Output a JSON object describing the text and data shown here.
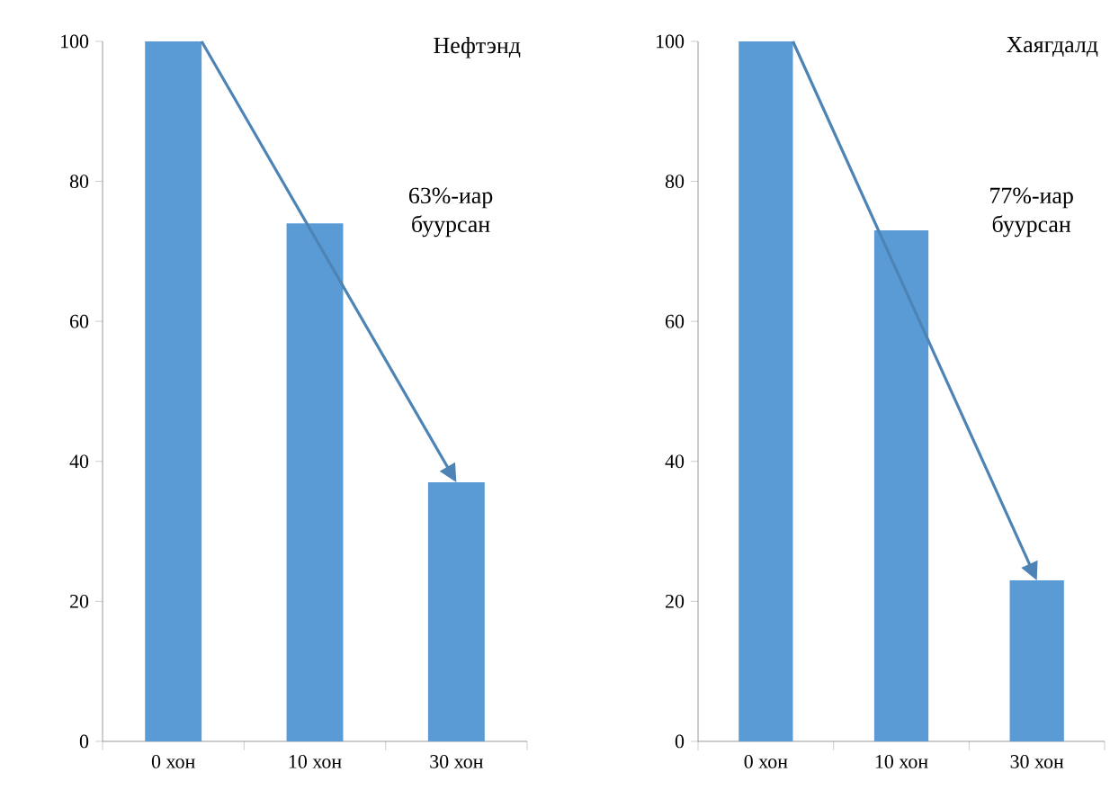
{
  "chart_data": [
    {
      "type": "bar",
      "title": "Нефтэнд",
      "categories": [
        "0 хон",
        "10 хон",
        "30 хон"
      ],
      "values": [
        100,
        74,
        37
      ],
      "color": "#5b9bd5",
      "ylim": [
        0,
        100
      ],
      "yticks": [
        0,
        20,
        40,
        60,
        80,
        100
      ],
      "annotations": [
        "63%-иар буурсан"
      ]
    },
    {
      "type": "bar",
      "title": "Хаягдалд",
      "categories": [
        "0 хон",
        "10 хон",
        "30 хон"
      ],
      "values": [
        100,
        73,
        23
      ],
      "color": "#5b9bd5",
      "ylim": [
        0,
        100
      ],
      "yticks": [
        0,
        20,
        40,
        60,
        80,
        100
      ],
      "annotations": [
        "77%-иар буурсан"
      ]
    }
  ]
}
